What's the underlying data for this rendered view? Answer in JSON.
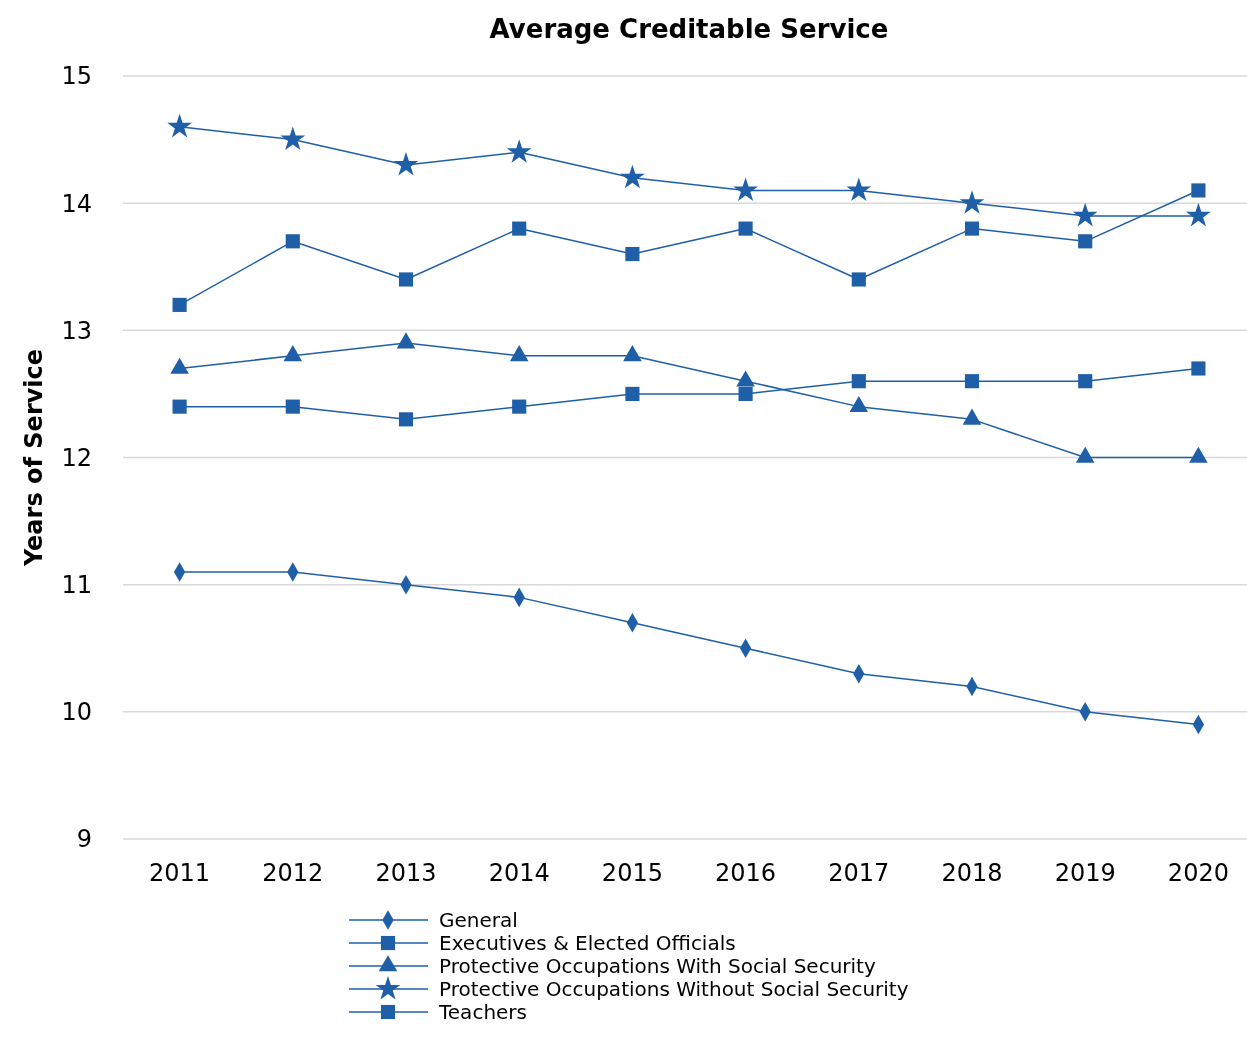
{
  "chart_data": {
    "type": "line",
    "title": "Average Creditable Service",
    "ylabel": "Years of Service",
    "categories": [
      "2011",
      "2012",
      "2013",
      "2014",
      "2015",
      "2016",
      "2017",
      "2018",
      "2019",
      "2020"
    ],
    "ylim": [
      9,
      15
    ],
    "yticks": [
      9,
      10,
      11,
      12,
      13,
      14,
      15
    ],
    "grid": "y",
    "legend": "bottom",
    "series": [
      {
        "name": "General",
        "color": "#1f5fa8",
        "marker": "diamond",
        "values": [
          11.1,
          11.1,
          11.0,
          10.9,
          10.7,
          10.5,
          10.3,
          10.2,
          10.0,
          9.9
        ]
      },
      {
        "name": "Executives & Elected Officials",
        "color": "#1f5fa8",
        "marker": "square",
        "values": [
          13.2,
          13.7,
          13.4,
          13.8,
          13.6,
          13.8,
          13.4,
          13.8,
          13.7,
          14.1
        ]
      },
      {
        "name": "Protective Occupations With Social Security",
        "color": "#1f5fa8",
        "marker": "triangle",
        "values": [
          12.7,
          12.8,
          12.9,
          12.8,
          12.8,
          12.6,
          12.4,
          12.3,
          12.0,
          12.0
        ]
      },
      {
        "name": "Protective Occupations Without Social Security",
        "color": "#1f5fa8",
        "marker": "star",
        "values": [
          14.6,
          14.5,
          14.3,
          14.4,
          14.2,
          14.1,
          14.1,
          14.0,
          13.9,
          13.9
        ]
      },
      {
        "name": "Teachers",
        "color": "#1f5fa8",
        "marker": "square",
        "values": [
          12.4,
          12.4,
          12.3,
          12.4,
          12.5,
          12.5,
          12.6,
          12.6,
          12.6,
          12.7
        ]
      }
    ]
  }
}
